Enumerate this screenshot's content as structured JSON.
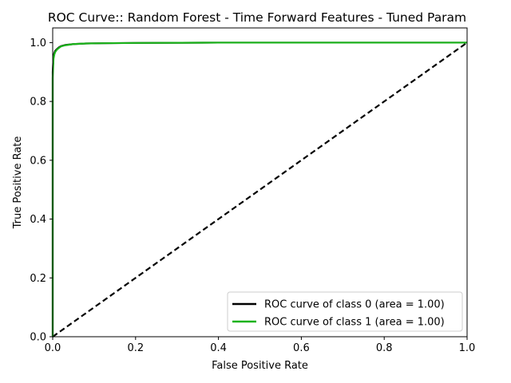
{
  "chart_data": {
    "type": "line",
    "title": "ROC Curve:: Random Forest - Time Forward Features - Tuned Param",
    "xlabel": "False Positive Rate",
    "ylabel": "True Positive Rate",
    "xlim": [
      0.0,
      1.0
    ],
    "ylim": [
      0.0,
      1.05
    ],
    "xticks": [
      "0.0",
      "0.2",
      "0.4",
      "0.6",
      "0.8",
      "1.0"
    ],
    "yticks": [
      "0.0",
      "0.2",
      "0.4",
      "0.6",
      "0.8",
      "1.0"
    ],
    "grid": false,
    "legend_position": "lower-right",
    "series": [
      {
        "name": "ROC curve of class 0 (area = 1.00)",
        "color": "#000000",
        "x": [
          0.0,
          0.0,
          0.002,
          0.004,
          0.006,
          0.01,
          0.015,
          0.02,
          0.03,
          0.05,
          0.08,
          0.12,
          0.2,
          0.4,
          0.6,
          0.8,
          1.0
        ],
        "y": [
          0.0,
          0.9,
          0.955,
          0.965,
          0.972,
          0.978,
          0.984,
          0.988,
          0.992,
          0.995,
          0.997,
          0.998,
          0.999,
          1.0,
          1.0,
          1.0,
          1.0
        ]
      },
      {
        "name": "ROC curve of class 1 (area = 1.00)",
        "color": "#1ab31a",
        "x": [
          0.0,
          0.0,
          0.002,
          0.004,
          0.006,
          0.01,
          0.015,
          0.02,
          0.03,
          0.05,
          0.08,
          0.12,
          0.2,
          0.4,
          0.6,
          0.8,
          1.0
        ],
        "y": [
          0.0,
          0.88,
          0.945,
          0.96,
          0.968,
          0.976,
          0.982,
          0.987,
          0.991,
          0.995,
          0.997,
          0.998,
          0.999,
          1.0,
          1.0,
          1.0,
          1.0
        ]
      }
    ],
    "reference_line": {
      "color": "#000000",
      "style": "dashed",
      "x": [
        0.0,
        1.0
      ],
      "y": [
        0.0,
        1.0
      ]
    }
  }
}
